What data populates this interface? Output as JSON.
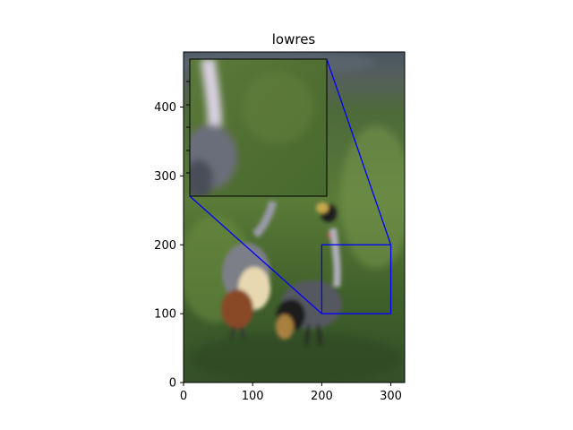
{
  "chart_data": {
    "type": "image",
    "title": "lowres",
    "xlabel": "",
    "ylabel": "",
    "xlim": [
      0,
      320
    ],
    "ylim": [
      0,
      480
    ],
    "x_ticks": [
      0,
      100,
      200,
      300
    ],
    "y_ticks": [
      0,
      100,
      200,
      300,
      400
    ],
    "grid": false,
    "zoom_region": {
      "x": [
        200,
        300
      ],
      "y": [
        100,
        200
      ]
    },
    "zoom_color": "#0000ff",
    "image_description": "two grey crowned cranes standing in green grass"
  }
}
